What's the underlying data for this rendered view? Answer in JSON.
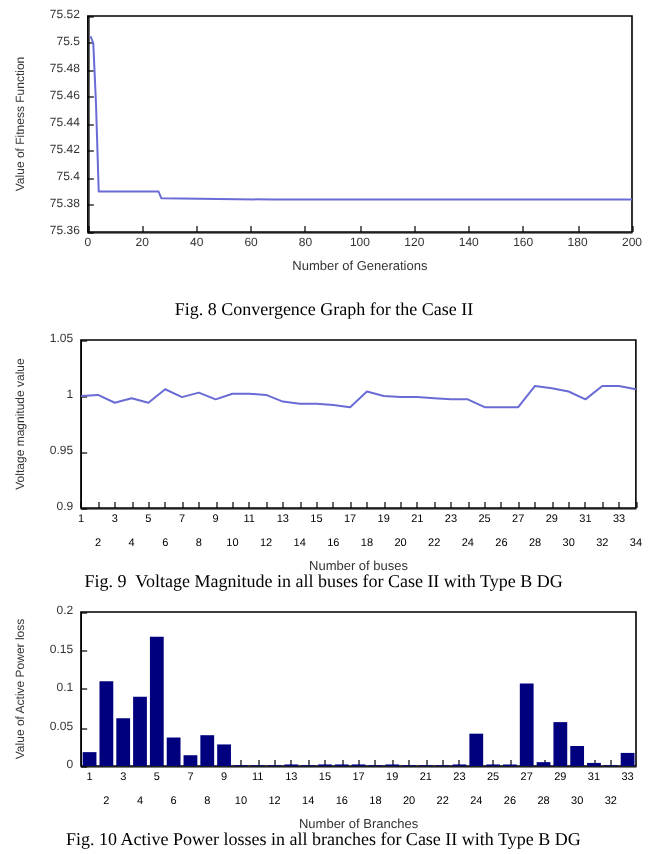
{
  "chart_data": [
    {
      "type": "line",
      "xlabel": "Number of Generations",
      "ylabel": "Value of Fitness Function",
      "annotations": [
        "Fig. 8 Convergence Graph for the Case II"
      ],
      "marker": "none",
      "color": "#6b6bd6",
      "x": [
        1,
        2,
        3,
        4,
        26,
        27,
        68,
        200
      ],
      "values": [
        75.505,
        75.5,
        75.455,
        75.39,
        75.39,
        75.385,
        75.384,
        75.384
      ],
      "xlim": [
        0,
        200
      ],
      "xticks": [
        0,
        20,
        40,
        60,
        80,
        100,
        120,
        140,
        160,
        180,
        200
      ],
      "ylim": [
        75.36,
        75.52
      ],
      "yticks": [
        75.36,
        75.38,
        75.4,
        75.42,
        75.44,
        75.46,
        75.48,
        75.5,
        75.52
      ]
    },
    {
      "type": "line",
      "xlabel": "Number of buses",
      "ylabel": "Voltage magnitude value",
      "annotations": [
        "Fig. 9  Voltage Magnitude in all buses for Case II with Type B DG"
      ],
      "marker": "none",
      "color": "#6b6bd6",
      "categories": [
        "1",
        "2",
        "3",
        "4",
        "5",
        "6",
        "7",
        "8",
        "9",
        "10",
        "11",
        "12",
        "13",
        "14",
        "15",
        "16",
        "17",
        "18",
        "19",
        "20",
        "21",
        "22",
        "23",
        "24",
        "25",
        "26",
        "27",
        "28",
        "29",
        "30",
        "31",
        "32",
        "33",
        "34"
      ],
      "values": [
        1.0,
        1.001,
        0.994,
        0.998,
        0.994,
        1.006,
        0.999,
        1.003,
        0.997,
        1.002,
        1.002,
        1.001,
        0.995,
        0.993,
        0.993,
        0.992,
        0.99,
        1.004,
        1.0,
        0.999,
        0.999,
        0.998,
        0.997,
        0.997,
        0.99,
        0.99,
        0.99,
        1.009,
        1.007,
        1.004,
        0.997,
        1.009,
        1.009,
        1.006
      ],
      "ylim": [
        0.9,
        1.05
      ],
      "yticks": [
        0.9,
        0.95,
        1,
        1.05
      ]
    },
    {
      "type": "bar",
      "xlabel": "Number of Branches",
      "ylabel": "Value of Active Power loss",
      "annotations": [
        "Fig. 10 Active Power losses in all branches for Case II with Type B DG"
      ],
      "color": "#00007f",
      "categories": [
        "1",
        "2",
        "3",
        "4",
        "5",
        "6",
        "7",
        "8",
        "9",
        "10",
        "11",
        "12",
        "13",
        "14",
        "15",
        "16",
        "17",
        "18",
        "19",
        "20",
        "21",
        "22",
        "23",
        "24",
        "25",
        "26",
        "27",
        "28",
        "29",
        "30",
        "31",
        "32",
        "33"
      ],
      "values": [
        0.018,
        0.11,
        0.062,
        0.09,
        0.168,
        0.037,
        0.014,
        0.04,
        0.028,
        0.001,
        0.001,
        0.001,
        0.002,
        0.001,
        0.002,
        0.002,
        0.002,
        0.001,
        0.002,
        0.001,
        0.001,
        0.001,
        0.002,
        0.042,
        0.002,
        0.002,
        0.107,
        0.005,
        0.057,
        0.026,
        0.004,
        0.001,
        0.017
      ],
      "ylim": [
        0,
        0.2
      ],
      "yticks": [
        0,
        0.05,
        0.1,
        0.15,
        0.2
      ]
    }
  ]
}
